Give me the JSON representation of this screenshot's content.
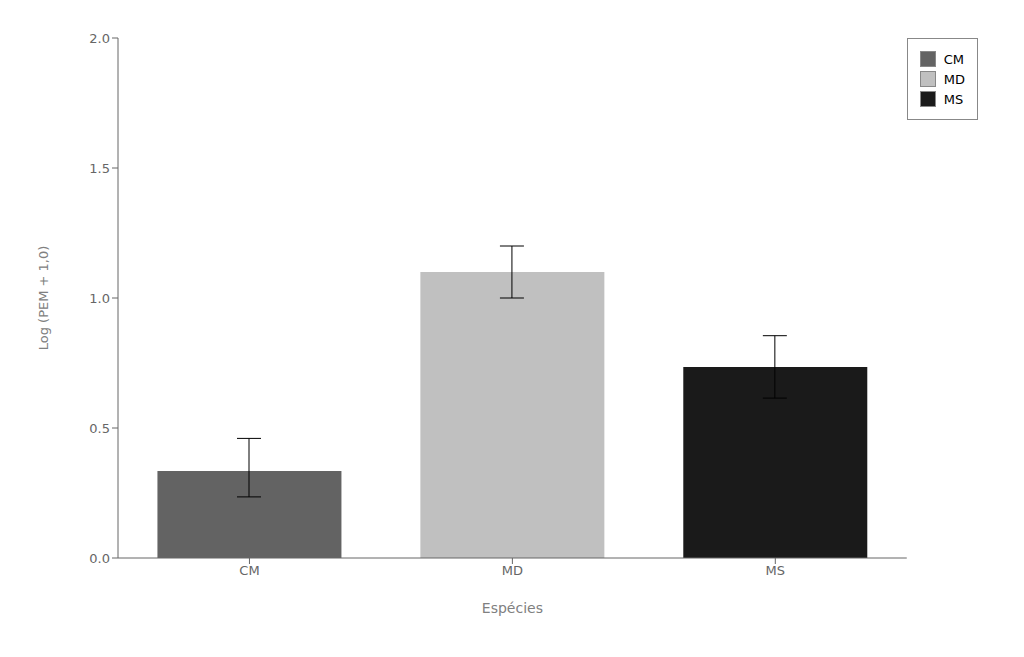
{
  "chart_data": {
    "type": "bar",
    "xlabel": "Espécies",
    "ylabel": "Log (PEM + 1,0)",
    "categories": [
      "CM",
      "MD",
      "MS"
    ],
    "values": [
      0.335,
      1.1,
      0.735
    ],
    "error_low": [
      0.235,
      1.0,
      0.615
    ],
    "error_high": [
      0.46,
      1.2,
      0.855
    ],
    "colors": [
      "#636363",
      "#c0c0c0",
      "#1a1a1a"
    ],
    "ylim": [
      0.0,
      2.0
    ],
    "yticks": [
      {
        "value": 0.0,
        "label": "0.0"
      },
      {
        "value": 0.5,
        "label": "0.5"
      },
      {
        "value": 1.0,
        "label": "1.0"
      },
      {
        "value": 1.5,
        "label": "1.5"
      },
      {
        "value": 2.0,
        "label": "2.0"
      }
    ],
    "legend": "upper right",
    "grid": false
  }
}
